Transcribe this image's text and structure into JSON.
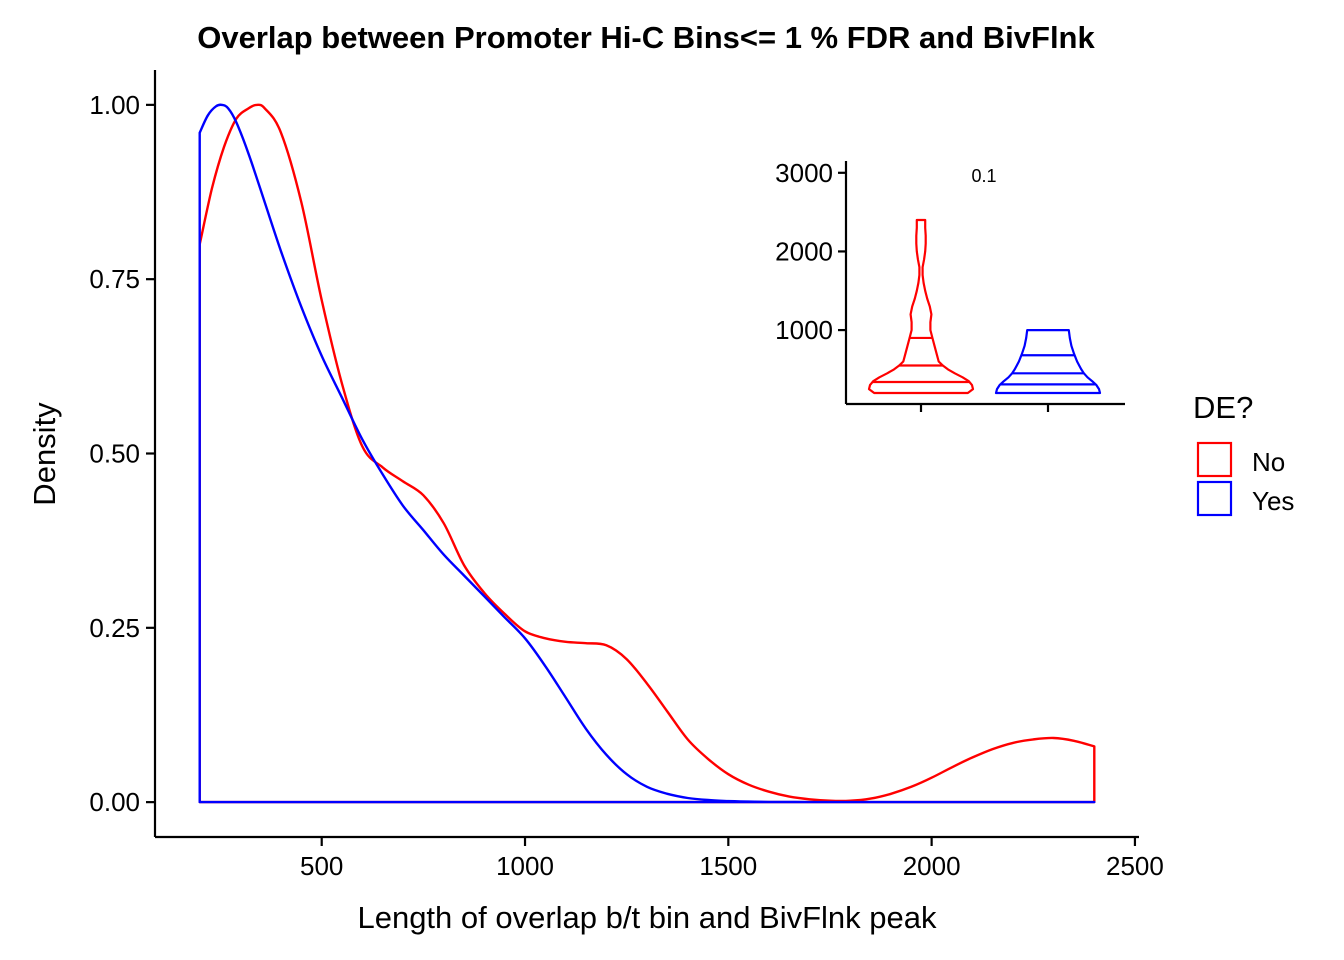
{
  "chart_data": [
    {
      "type": "area",
      "title": "Overlap between Promoter Hi-C Bins<= 1 % FDR and BivFlnk",
      "xlabel": "Length of overlap b/t bin and BivFlnk peak",
      "ylabel": "Density",
      "xlim": [
        90,
        2510
      ],
      "ylim": [
        -0.05,
        1.05
      ],
      "x_ticks": [
        500,
        1000,
        1500,
        2000,
        2500
      ],
      "y_ticks": [
        0.0,
        0.25,
        0.5,
        0.75,
        1.0
      ],
      "x_tick_labels": [
        "500",
        "1000",
        "1500",
        "2000",
        "2500"
      ],
      "y_tick_labels": [
        "0.00",
        "0.25",
        "0.50",
        "0.75",
        "1.00"
      ],
      "grid": false,
      "legend": {
        "title": "DE?",
        "position": "right"
      },
      "series": [
        {
          "name": "No",
          "color": "#ff0000",
          "x": [
            200,
            230,
            260,
            290,
            320,
            340,
            360,
            400,
            450,
            500,
            550,
            600,
            650,
            700,
            750,
            800,
            850,
            900,
            950,
            1000,
            1050,
            1100,
            1150,
            1200,
            1250,
            1300,
            1350,
            1400,
            1450,
            1500,
            1550,
            1600,
            1650,
            1700,
            1750,
            1800,
            1850,
            1900,
            1950,
            2000,
            2050,
            2100,
            2150,
            2200,
            2250,
            2300,
            2350,
            2400
          ],
          "y": [
            0.8,
            0.88,
            0.94,
            0.98,
            0.995,
            1.0,
            0.995,
            0.96,
            0.86,
            0.72,
            0.6,
            0.51,
            0.48,
            0.46,
            0.44,
            0.4,
            0.34,
            0.3,
            0.27,
            0.245,
            0.235,
            0.23,
            0.228,
            0.225,
            0.205,
            0.17,
            0.13,
            0.09,
            0.062,
            0.04,
            0.025,
            0.015,
            0.008,
            0.004,
            0.002,
            0.002,
            0.005,
            0.012,
            0.022,
            0.035,
            0.05,
            0.064,
            0.076,
            0.085,
            0.09,
            0.092,
            0.088,
            0.08
          ]
        },
        {
          "name": "Yes",
          "color": "#0000ff",
          "x": [
            200,
            220,
            240,
            255,
            270,
            290,
            320,
            360,
            400,
            450,
            500,
            550,
            600,
            650,
            700,
            750,
            800,
            850,
            900,
            950,
            1000,
            1050,
            1100,
            1150,
            1200,
            1250,
            1300,
            1350,
            1400,
            1450,
            1500,
            1550,
            1600,
            1700,
            1800,
            2000,
            2200,
            2400
          ],
          "y": [
            0.96,
            0.985,
            0.998,
            1.0,
            0.995,
            0.975,
            0.93,
            0.86,
            0.79,
            0.71,
            0.64,
            0.58,
            0.52,
            0.47,
            0.425,
            0.39,
            0.355,
            0.325,
            0.295,
            0.265,
            0.235,
            0.195,
            0.15,
            0.105,
            0.068,
            0.04,
            0.022,
            0.012,
            0.006,
            0.003,
            0.0015,
            0.0008,
            0.0004,
            0.0001,
            0.0,
            0.0,
            0.0,
            0.0
          ]
        }
      ]
    },
    {
      "type": "violin",
      "title": "",
      "xlabel": "",
      "ylabel": "",
      "ylim": [
        60,
        3150
      ],
      "y_ticks": [
        1000,
        2000,
        3000
      ],
      "y_tick_labels": [
        "1000",
        "2000",
        "3000"
      ],
      "annotation": "0.1",
      "series": [
        {
          "name": "No",
          "color": "#ff0000",
          "profile_y": [
            200,
            250,
            300,
            350,
            400,
            450,
            500,
            550,
            600,
            700,
            800,
            900,
            1000,
            1100,
            1200,
            1300,
            1400,
            1500,
            1600,
            1700,
            1800,
            1900,
            2000,
            2100,
            2200,
            2300,
            2400
          ],
          "profile_w": [
            0.9,
            1.0,
            0.98,
            0.92,
            0.8,
            0.65,
            0.52,
            0.42,
            0.34,
            0.3,
            0.26,
            0.22,
            0.18,
            0.18,
            0.2,
            0.17,
            0.12,
            0.08,
            0.05,
            0.03,
            0.03,
            0.06,
            0.08,
            0.09,
            0.09,
            0.08,
            0.08
          ],
          "quantiles": [
            340,
            550,
            900
          ]
        },
        {
          "name": "Yes",
          "color": "#0000ff",
          "profile_y": [
            200,
            250,
            300,
            350,
            400,
            450,
            500,
            550,
            600,
            700,
            800,
            900,
            1000
          ],
          "profile_w": [
            1.0,
            0.98,
            0.93,
            0.85,
            0.76,
            0.69,
            0.64,
            0.6,
            0.56,
            0.5,
            0.45,
            0.42,
            0.4
          ],
          "quantiles": [
            310,
            450,
            680
          ]
        }
      ]
    }
  ]
}
